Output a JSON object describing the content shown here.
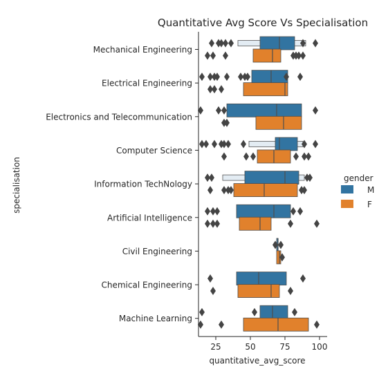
{
  "chart_data": {
    "type": "boxenplot",
    "title": "Quantitative Avg Score Vs Specialisation",
    "xlabel": "quantitative_avg_score",
    "ylabel": "specialisation",
    "xlim": [
      12,
      102
    ],
    "xticks": [
      25,
      50,
      75,
      100
    ],
    "orientation": "horizontal",
    "grid": false,
    "legend": {
      "title": "gender",
      "position": "right",
      "entries": [
        "M",
        "F"
      ]
    },
    "colors": {
      "M": "#3274a1",
      "F": "#e1812c",
      "M_light": "#e3ecf3",
      "F_light": "#fbebdc",
      "outlier": "#444444"
    },
    "categories": [
      "Mechanical Engineering",
      "Electrical Engineering",
      "Electronics and Telecommunication",
      "Computer Science",
      "Information TechNology",
      "Artificial Intelligence",
      "Civil Engineering",
      "Chemical Engineering",
      "Machine Learning"
    ],
    "series": [
      {
        "name": "M",
        "boxes": [
          {
            "q1": 57,
            "median": 71,
            "q3": 82,
            "outer": [
              41,
              90
            ],
            "outliers": [
              22,
              27,
              29,
              32,
              36,
              88,
              97
            ]
          },
          {
            "q1": 51,
            "median": 65,
            "q3": 77,
            "outliers": [
              15,
              21,
              24,
              26,
              33,
              43,
              46,
              48,
              76,
              86
            ]
          },
          {
            "q1": 33,
            "median": 69,
            "q3": 87,
            "outliers": [
              14,
              27,
              31,
              97
            ]
          },
          {
            "q1": 68,
            "median": 71,
            "q3": 84,
            "outer": [
              49,
              88
            ],
            "outliers": [
              15,
              18,
              24,
              29,
              31,
              34,
              45,
              89,
              97
            ]
          },
          {
            "q1": 46,
            "median": 75,
            "q3": 85,
            "outer": [
              30,
              89
            ],
            "outliers": [
              19,
              22,
              91,
              93
            ]
          },
          {
            "q1": 40,
            "median": 67,
            "q3": 79,
            "outliers": [
              19,
              23,
              26,
              81,
              86
            ]
          },
          {
            "q1": 69,
            "median": 70,
            "q3": 70,
            "outliers": [
              68,
              72
            ]
          },
          {
            "q1": 40,
            "median": 56,
            "q3": 76,
            "outliers": [
              21,
              88
            ]
          },
          {
            "q1": 57,
            "median": 66,
            "q3": 77,
            "outliers": [
              15,
              53,
              82
            ]
          }
        ]
      },
      {
        "name": "F",
        "boxes": [
          {
            "q1": 52,
            "median": 66,
            "q3": 72,
            "outliers": [
              19,
              23,
              32,
              81,
              83,
              85,
              88
            ]
          },
          {
            "q1": 45,
            "median": 75,
            "q3": 77,
            "outliers": [
              21,
              24,
              29
            ]
          },
          {
            "q1": 54,
            "median": 74,
            "q3": 87,
            "outliers": [
              31,
              33
            ]
          },
          {
            "q1": 55,
            "median": 67,
            "q3": 79,
            "outliers": [
              31,
              47,
              52,
              83,
              89,
              92
            ]
          },
          {
            "q1": 38,
            "median": 60,
            "q3": 84,
            "outliers": [
              21,
              31,
              34,
              36,
              87,
              89
            ]
          },
          {
            "q1": 42,
            "median": 57,
            "q3": 65,
            "outliers": [
              19,
              23,
              26,
              79,
              98
            ]
          },
          {
            "q1": 69,
            "median": 71,
            "q3": 72,
            "outliers": [
              73
            ]
          },
          {
            "q1": 41,
            "median": 65,
            "q3": 71,
            "outliers": [
              23,
              79
            ]
          },
          {
            "q1": 45,
            "median": 70,
            "q3": 92,
            "outliers": [
              14,
              29,
              98
            ]
          }
        ]
      }
    ]
  }
}
